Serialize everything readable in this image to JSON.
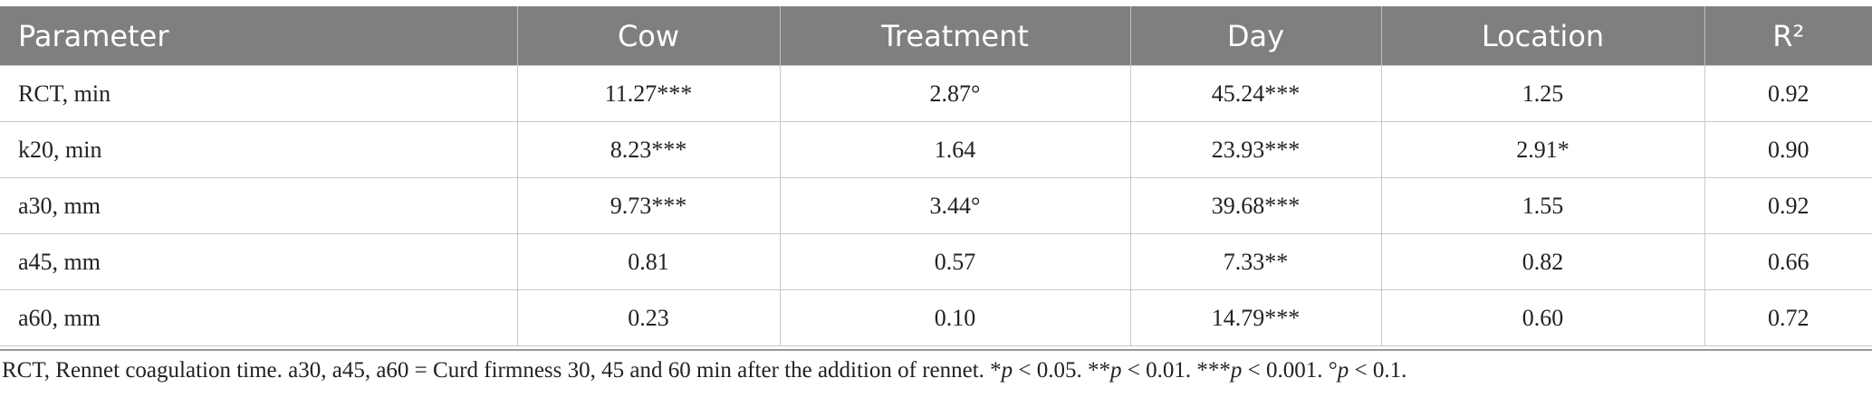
{
  "table": {
    "headers": [
      "Parameter",
      "Cow",
      "Treatment",
      "Day",
      "Location",
      "R²"
    ],
    "rows": [
      [
        "RCT, min",
        "11.27***",
        "2.87°",
        "45.24***",
        "1.25",
        "0.92"
      ],
      [
        "k20, min",
        "8.23***",
        "1.64",
        "23.93***",
        "2.91*",
        "0.90"
      ],
      [
        "a30, mm",
        "9.73***",
        "3.44°",
        "39.68***",
        "1.55",
        "0.92"
      ],
      [
        "a45, mm",
        "0.81",
        "0.57",
        "7.33**",
        "0.82",
        "0.66"
      ],
      [
        "a60, mm",
        "0.23",
        "0.10",
        "14.79***",
        "0.60",
        "0.72"
      ]
    ]
  },
  "footnote": [
    {
      "text": "RCT, Rennet coagulation time. a30, a45, a60 = Curd firmness 30, 45 and 60 min after the addition of rennet. *",
      "italic": false
    },
    {
      "text": "p",
      "italic": true
    },
    {
      "text": " < 0.05. **",
      "italic": false
    },
    {
      "text": "p",
      "italic": true
    },
    {
      "text": " < 0.01. ***",
      "italic": false
    },
    {
      "text": "p",
      "italic": true
    },
    {
      "text": " < 0.001. °",
      "italic": false
    },
    {
      "text": "p",
      "italic": true
    },
    {
      "text": " < 0.1.",
      "italic": false
    }
  ]
}
